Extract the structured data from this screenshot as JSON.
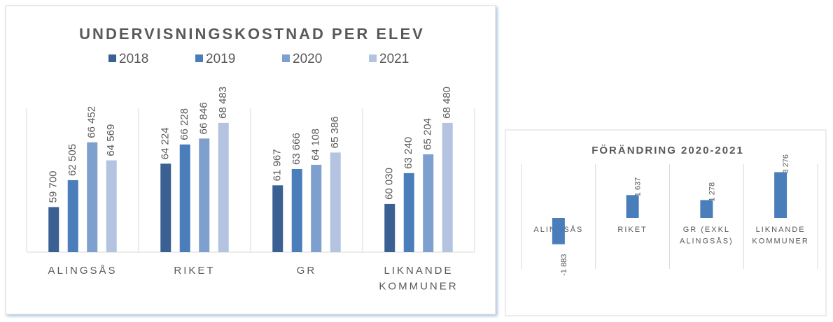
{
  "chart_data": [
    {
      "type": "bar",
      "title": "UNDERVISNINGSKOSTNAD PER ELEV",
      "categories": [
        "ALINGSÅS",
        "RIKET",
        "GR",
        "LIKNANDE KOMMUNER"
      ],
      "series": [
        {
          "name": "2018",
          "color": "#3b6193",
          "values": [
            59700,
            64224,
            61967,
            60030
          ],
          "value_labels": [
            "59 700",
            "64 224",
            "61 967",
            "60 030"
          ]
        },
        {
          "name": "2019",
          "color": "#4a7ebb",
          "values": [
            62505,
            66228,
            63666,
            63240
          ],
          "value_labels": [
            "62 505",
            "66 228",
            "63 666",
            "63 240"
          ]
        },
        {
          "name": "2020",
          "color": "#7f9fce",
          "values": [
            66452,
            66846,
            64108,
            65204
          ],
          "value_labels": [
            "66 452",
            "66 846",
            "64 108",
            "65 204"
          ]
        },
        {
          "name": "2021",
          "color": "#b4c3e0",
          "values": [
            64569,
            68483,
            65386,
            68480
          ],
          "value_labels": [
            "64 569",
            "68 483",
            "65 386",
            "68 480"
          ]
        }
      ],
      "ylim": [
        55000,
        70000
      ]
    },
    {
      "type": "bar",
      "title": "FÖRÄNDRING 2020-2021",
      "categories": [
        "ALINGSÅS",
        "RIKET",
        "GR (EXKL ALINGSÅS)",
        "LIKNANDE KOMMUNER"
      ],
      "values": [
        -1883,
        1637,
        1278,
        3276
      ],
      "value_labels": [
        "-1 883",
        "1 637",
        "1 278",
        "3 276"
      ],
      "color": "#4a7ebb",
      "ylim": [
        -4000,
        4000
      ]
    }
  ]
}
